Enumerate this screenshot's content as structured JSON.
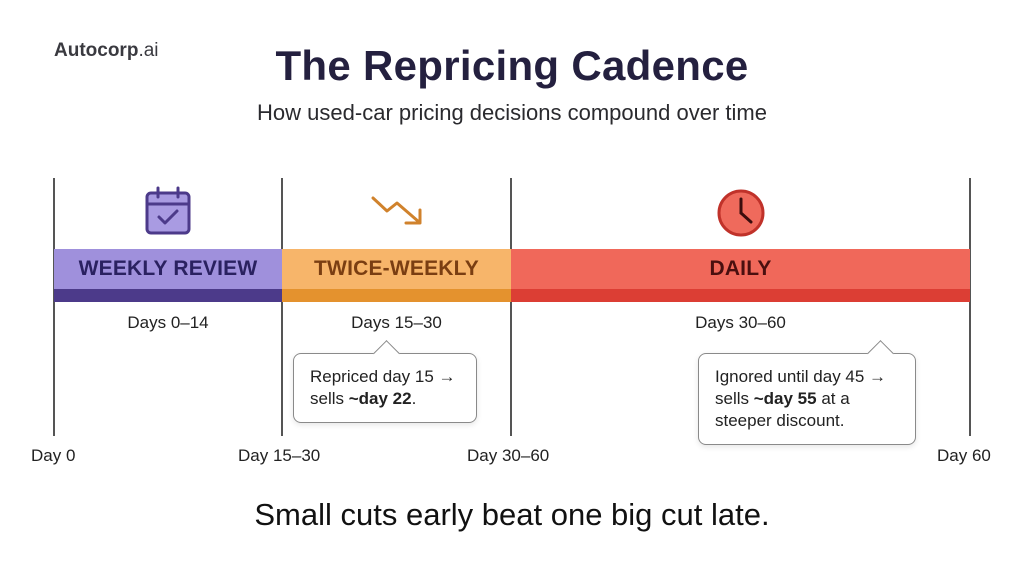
{
  "brand": {
    "name_bold": "Autocorp",
    "name_suffix": ".ai"
  },
  "title": "The Repricing Cadence",
  "subtitle": "How used-car pricing decisions compound over time",
  "phases": [
    {
      "label": "WEEKLY REVIEW",
      "range": "Days 0–14",
      "icon": "calendar-check-icon",
      "color": "#9f90dc",
      "accent": "#4c3a8a"
    },
    {
      "label": "TWICE-WEEKLY",
      "range": "Days 15–30",
      "icon": "trending-down-arrow-icon",
      "color": "#f7b56a",
      "accent": "#e4922e"
    },
    {
      "label": "DAILY",
      "range": "Days 30–60",
      "icon": "clock-icon",
      "color": "#f0685a",
      "accent": "#dc3e34"
    }
  ],
  "callouts": [
    {
      "pre": "Repriced day 15 → sells ",
      "bold": "~day 22",
      "post": "."
    },
    {
      "pre": "Ignored until day 45 → sells ",
      "bold": "~day 55",
      "post": " at a steeper discount."
    }
  ],
  "ticks": [
    "Day 0",
    "Day 15–30",
    "Day 30–60",
    "Day 60"
  ],
  "tagline": "Small cuts early beat one big cut late."
}
